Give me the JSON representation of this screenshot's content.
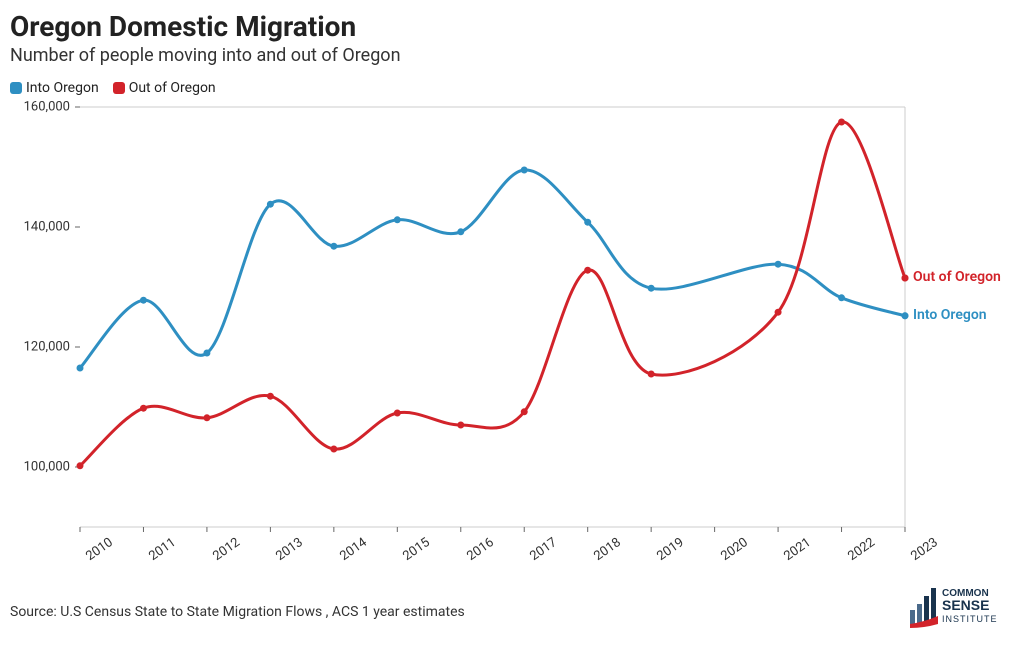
{
  "title": "Oregon Domestic Migration",
  "subtitle": "Number of people moving into and out of Oregon",
  "source": "Source: U.S Census State to State Migration Flows , ACS 1 year estimates",
  "chart": {
    "type": "line",
    "background_color": "#ffffff",
    "plot_border_color": "#cccccc",
    "line_width": 3,
    "marker_radius": 3.5,
    "x": {
      "categories": [
        "2010",
        "2011",
        "2012",
        "2013",
        "2014",
        "2015",
        "2016",
        "2017",
        "2018",
        "2019",
        "2020",
        "2021",
        "2022",
        "2023"
      ],
      "label_fontsize": 13,
      "label_color": "#333333",
      "rotation_deg": -35
    },
    "y": {
      "min": 90000,
      "max": 160000,
      "tick_step": 20000,
      "ticks": [
        100000,
        120000,
        140000,
        160000
      ],
      "tick_labels": [
        "100,000",
        "120,000",
        "140,000",
        "160,000"
      ],
      "label_fontsize": 13,
      "label_color": "#333333"
    },
    "series": [
      {
        "name": "Into Oregon",
        "color": "#2e8fc2",
        "values": [
          116500,
          127800,
          119000,
          143800,
          136800,
          141200,
          139200,
          149500,
          140800,
          129800,
          null,
          133800,
          128200,
          125200
        ]
      },
      {
        "name": "Out of Oregon",
        "color": "#d2232a",
        "values": [
          100200,
          109800,
          108200,
          111800,
          103000,
          109000,
          107000,
          109200,
          132800,
          115500,
          null,
          125800,
          157500,
          131500
        ]
      }
    ],
    "end_labels": [
      {
        "text": "Out of Oregon",
        "color": "#d2232a",
        "attach_series": 1
      },
      {
        "text": "Into Oregon",
        "color": "#2e8fc2",
        "attach_series": 0
      }
    ]
  },
  "legend": {
    "items": [
      {
        "label": "Into Oregon",
        "color": "#2e8fc2"
      },
      {
        "label": "Out of Oregon",
        "color": "#d2232a"
      }
    ]
  },
  "logo": {
    "top_text": "COMMON",
    "mid_text": "SENSE",
    "bottom_text": "INSTITUTE",
    "bars_color_light": "#4a6a8a",
    "bars_color_dark": "#19334d",
    "accent_color": "#d2232a"
  }
}
